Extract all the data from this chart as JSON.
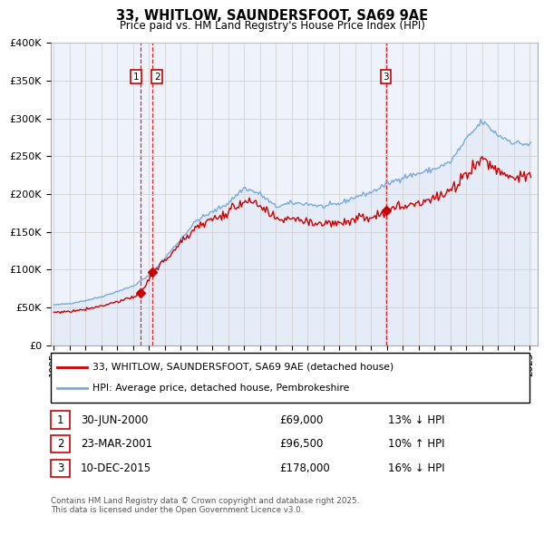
{
  "title": "33, WHITLOW, SAUNDERSFOOT, SA69 9AE",
  "subtitle": "Price paid vs. HM Land Registry's House Price Index (HPI)",
  "ylabel_ticks": [
    "£0",
    "£50K",
    "£100K",
    "£150K",
    "£200K",
    "£250K",
    "£300K",
    "£350K",
    "£400K"
  ],
  "ylim": [
    0,
    400000
  ],
  "xlim_start": 1994.8,
  "xlim_end": 2025.5,
  "red_line_color": "#cc0000",
  "blue_line_color": "#7aaadd",
  "blue_fill_color": "#dde8f5",
  "grid_color": "#cccccc",
  "background_color": "#eef2fb",
  "sale_times": [
    2000.497,
    2001.22,
    2015.94
  ],
  "sale_prices": [
    69000,
    96500,
    178000
  ],
  "sale_labels": [
    "1",
    "2",
    "3"
  ],
  "legend_entries": [
    "33, WHITLOW, SAUNDERSFOOT, SA69 9AE (detached house)",
    "HPI: Average price, detached house, Pembrokeshire"
  ],
  "table_rows": [
    {
      "num": "1",
      "date": "30-JUN-2000",
      "price": "£69,000",
      "change": "13% ↓ HPI"
    },
    {
      "num": "2",
      "date": "23-MAR-2001",
      "price": "£96,500",
      "change": "10% ↑ HPI"
    },
    {
      "num": "3",
      "date": "10-DEC-2015",
      "price": "£178,000",
      "change": "16% ↓ HPI"
    }
  ],
  "footnote": "Contains HM Land Registry data © Crown copyright and database right 2025.\nThis data is licensed under the Open Government Licence v3.0."
}
